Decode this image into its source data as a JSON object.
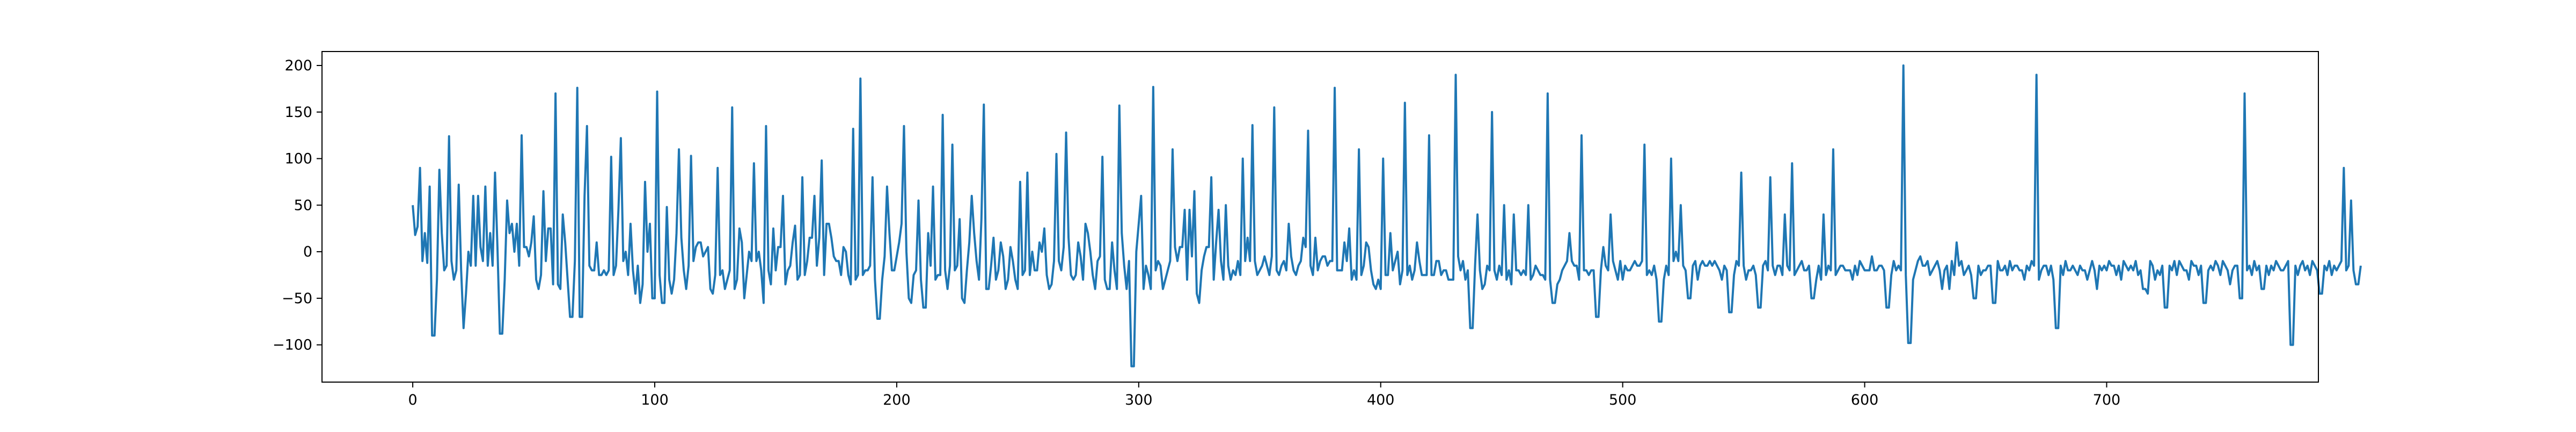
{
  "chart_data": {
    "type": "line",
    "title": "",
    "xlabel": "",
    "ylabel": "",
    "xlim": [
      -37.5,
      787.5
    ],
    "ylim": [
      -140,
      215
    ],
    "grid": false,
    "legend": "none",
    "x_ticks": [
      0,
      100,
      200,
      300,
      400,
      500,
      600,
      700
    ],
    "y_ticks": [
      -100,
      -50,
      0,
      50,
      100,
      150,
      200
    ],
    "x_tick_labels": [
      "0",
      "100",
      "200",
      "300",
      "400",
      "500",
      "600",
      "700"
    ],
    "y_tick_labels": [
      "−100",
      "−50",
      "0",
      "50",
      "100",
      "150",
      "200"
    ],
    "series": [
      {
        "color": "#1f77b4",
        "x_start": 0,
        "x_step": 1,
        "values": [
          50,
          18,
          27,
          90,
          -10,
          20,
          -12,
          70,
          -90,
          -90,
          -30,
          88,
          20,
          -20,
          -15,
          124,
          -10,
          -30,
          -20,
          72,
          -20,
          -82,
          -45,
          0,
          -15,
          60,
          -15,
          60,
          5,
          -10,
          70,
          -15,
          20,
          -15,
          85,
          5,
          -88,
          -88,
          -30,
          55,
          20,
          30,
          0,
          30,
          -15,
          125,
          5,
          5,
          -5,
          10,
          38,
          -30,
          -40,
          -25,
          65,
          -10,
          25,
          25,
          -35,
          170,
          -35,
          -40,
          40,
          10,
          -30,
          -70,
          -70,
          -10,
          176,
          -70,
          -70,
          60,
          135,
          -15,
          -20,
          -20,
          10,
          -25,
          -25,
          -20,
          -25,
          -20,
          102,
          -25,
          -15,
          45,
          122,
          -10,
          0,
          -25,
          30,
          -20,
          -45,
          -15,
          -55,
          -35,
          75,
          0,
          30,
          -50,
          -50,
          172,
          -25,
          -55,
          -55,
          48,
          -30,
          -45,
          -30,
          20,
          110,
          15,
          -20,
          -40,
          -15,
          103,
          -10,
          5,
          10,
          10,
          -5,
          0,
          5,
          -40,
          -45,
          -25,
          90,
          -25,
          -20,
          -40,
          -30,
          -20,
          155,
          -40,
          -30,
          25,
          10,
          -50,
          -25,
          0,
          -10,
          95,
          -10,
          0,
          -20,
          -55,
          135,
          -20,
          -35,
          25,
          -20,
          5,
          5,
          60,
          -35,
          -20,
          -15,
          10,
          28,
          -30,
          -25,
          80,
          -25,
          -10,
          15,
          15,
          60,
          -15,
          15,
          98,
          -25,
          30,
          30,
          15,
          -5,
          -10,
          -10,
          -25,
          5,
          0,
          -25,
          -35,
          132,
          -30,
          -25,
          186,
          -25,
          -20,
          -20,
          -15,
          80,
          -30,
          -72,
          -72,
          -30,
          -5,
          70,
          20,
          -20,
          -20,
          -5,
          10,
          30,
          135,
          0,
          -50,
          -55,
          -25,
          -20,
          55,
          -30,
          -60,
          -60,
          20,
          -15,
          70,
          -30,
          -25,
          -25,
          147,
          -20,
          -40,
          -15,
          115,
          -20,
          -15,
          35,
          -50,
          -55,
          -20,
          10,
          60,
          20,
          -10,
          -30,
          35,
          158,
          -40,
          -40,
          -15,
          15,
          -30,
          -20,
          10,
          -5,
          -40,
          -30,
          5,
          -10,
          -30,
          -40,
          75,
          -25,
          -20,
          85,
          -25,
          0,
          -20,
          -20,
          10,
          0,
          25,
          -25,
          -40,
          -35,
          -10,
          105,
          -10,
          -20,
          5,
          128,
          15,
          -25,
          -30,
          -25,
          10,
          -5,
          -30,
          30,
          20,
          0,
          -25,
          -40,
          -10,
          -5,
          102,
          -30,
          -40,
          -40,
          10,
          -20,
          -40,
          157,
          20,
          -15,
          -40,
          -10,
          -123,
          -123,
          0,
          30,
          60,
          -40,
          -15,
          -25,
          -40,
          177,
          -20,
          -10,
          -15,
          -40,
          -30,
          -20,
          -10,
          110,
          5,
          -10,
          5,
          5,
          45,
          -30,
          45,
          -5,
          65,
          -45,
          -55,
          -20,
          -5,
          5,
          5,
          80,
          -30,
          10,
          45,
          -10,
          -30,
          50,
          -15,
          -30,
          -20,
          -25,
          -10,
          -25,
          100,
          -10,
          15,
          -10,
          136,
          -10,
          -25,
          -20,
          -15,
          -5,
          -15,
          -25,
          -5,
          155,
          -20,
          -25,
          -15,
          -10,
          -20,
          30,
          -5,
          -20,
          -25,
          -15,
          -10,
          15,
          5,
          130,
          -15,
          -25,
          15,
          -20,
          -10,
          -5,
          -5,
          -15,
          -10,
          -10,
          176,
          -20,
          -20,
          -20,
          10,
          -10,
          25,
          -30,
          -20,
          -30,
          110,
          -25,
          -15,
          10,
          5,
          -20,
          -35,
          -40,
          -30,
          -40,
          100,
          -25,
          -25,
          20,
          -20,
          -10,
          0,
          -35,
          -20,
          160,
          -25,
          -15,
          -30,
          -20,
          10,
          -10,
          -25,
          -25,
          -25,
          125,
          -25,
          -25,
          -10,
          -10,
          -25,
          -20,
          -20,
          -30,
          -30,
          -30,
          190,
          -5,
          -20,
          -10,
          -30,
          -20,
          -82,
          -82,
          -15,
          40,
          -20,
          -40,
          -35,
          -15,
          -20,
          150,
          -20,
          -30,
          -15,
          -25,
          50,
          -30,
          -20,
          -35,
          40,
          -20,
          -20,
          -25,
          -20,
          -25,
          50,
          -30,
          -25,
          -15,
          -20,
          -25,
          -25,
          -30,
          170,
          -30,
          -55,
          -55,
          -35,
          -30,
          -20,
          -15,
          -10,
          20,
          -10,
          -15,
          -15,
          -30,
          125,
          -20,
          -20,
          -25,
          -20,
          -20,
          -70,
          -70,
          -20,
          5,
          -15,
          -20,
          40,
          -10,
          -20,
          -30,
          -10,
          -30,
          -15,
          -20,
          -20,
          -15,
          -10,
          -15,
          -15,
          -10,
          115,
          -25,
          -20,
          -25,
          -15,
          -30,
          -75,
          -75,
          -30,
          -15,
          -25,
          100,
          -10,
          0,
          -10,
          50,
          -15,
          -20,
          -50,
          -50,
          -15,
          -10,
          -30,
          -15,
          -10,
          -15,
          -15,
          -10,
          -15,
          -10,
          -15,
          -20,
          -30,
          -15,
          -20,
          -65,
          -65,
          -25,
          -10,
          -15,
          85,
          -15,
          -30,
          -20,
          -20,
          -15,
          -25,
          -60,
          -60,
          -15,
          -10,
          -20,
          80,
          -15,
          -25,
          -15,
          -15,
          -25,
          40,
          -15,
          -20,
          95,
          -25,
          -20,
          -15,
          -10,
          -20,
          -20,
          -15,
          -50,
          -50,
          -30,
          -15,
          -30,
          40,
          -25,
          -15,
          -20,
          110,
          -25,
          -20,
          -15,
          -15,
          -20,
          -20,
          -20,
          -30,
          -15,
          -25,
          -10,
          -15,
          -20,
          -20,
          -20,
          -5,
          -20,
          -20,
          -15,
          -15,
          -20,
          -60,
          -60,
          -25,
          -10,
          -20,
          -15,
          -20,
          200,
          -25,
          -98,
          -98,
          -30,
          -20,
          -10,
          -5,
          -15,
          -15,
          -10,
          -25,
          -20,
          -15,
          -10,
          -20,
          -40,
          -20,
          -15,
          -40,
          -10,
          -25,
          10,
          -15,
          -10,
          -25,
          -20,
          -15,
          -25,
          -50,
          -50,
          -15,
          -25,
          -20,
          -20,
          -15,
          -15,
          -55,
          -55,
          -10,
          -20,
          -20,
          -15,
          -25,
          -10,
          -20,
          -15,
          -15,
          -20,
          -20,
          -30,
          -15,
          -20,
          -10,
          -15,
          190,
          -30,
          -20,
          -15,
          -15,
          -25,
          -15,
          -30,
          -82,
          -82,
          -15,
          -25,
          -10,
          -20,
          -20,
          -15,
          -20,
          -25,
          -15,
          -20,
          -20,
          -30,
          -20,
          -10,
          -20,
          -40,
          -15,
          -20,
          -15,
          -20,
          -10,
          -15,
          -15,
          -25,
          -15,
          -30,
          -10,
          -15,
          -20,
          -15,
          -20,
          -10,
          -25,
          -20,
          -40,
          -40,
          -45,
          -10,
          -15,
          -30,
          -20,
          -25,
          -15,
          -60,
          -60,
          -15,
          -20,
          -10,
          -25,
          -10,
          -15,
          -20,
          -20,
          -30,
          -10,
          -15,
          -15,
          -25,
          -15,
          -55,
          -55,
          -20,
          -15,
          -20,
          -10,
          -15,
          -25,
          -10,
          -15,
          -20,
          -35,
          -20,
          -15,
          -15,
          -50,
          -50,
          170,
          -20,
          -15,
          -25,
          -10,
          -20,
          -15,
          -40,
          -40,
          -15,
          -25,
          -15,
          -20,
          -10,
          -15,
          -20,
          -20,
          -15,
          -10,
          -100,
          -100,
          -15,
          -25,
          -15,
          -10,
          -20,
          -15,
          -25,
          -10,
          -15,
          -20,
          -45,
          -45,
          -15,
          -20,
          -10,
          -25,
          -15,
          -20,
          -15,
          -10,
          90,
          -20,
          -15,
          55,
          -20,
          -35,
          -35,
          -15
        ]
      }
    ]
  }
}
